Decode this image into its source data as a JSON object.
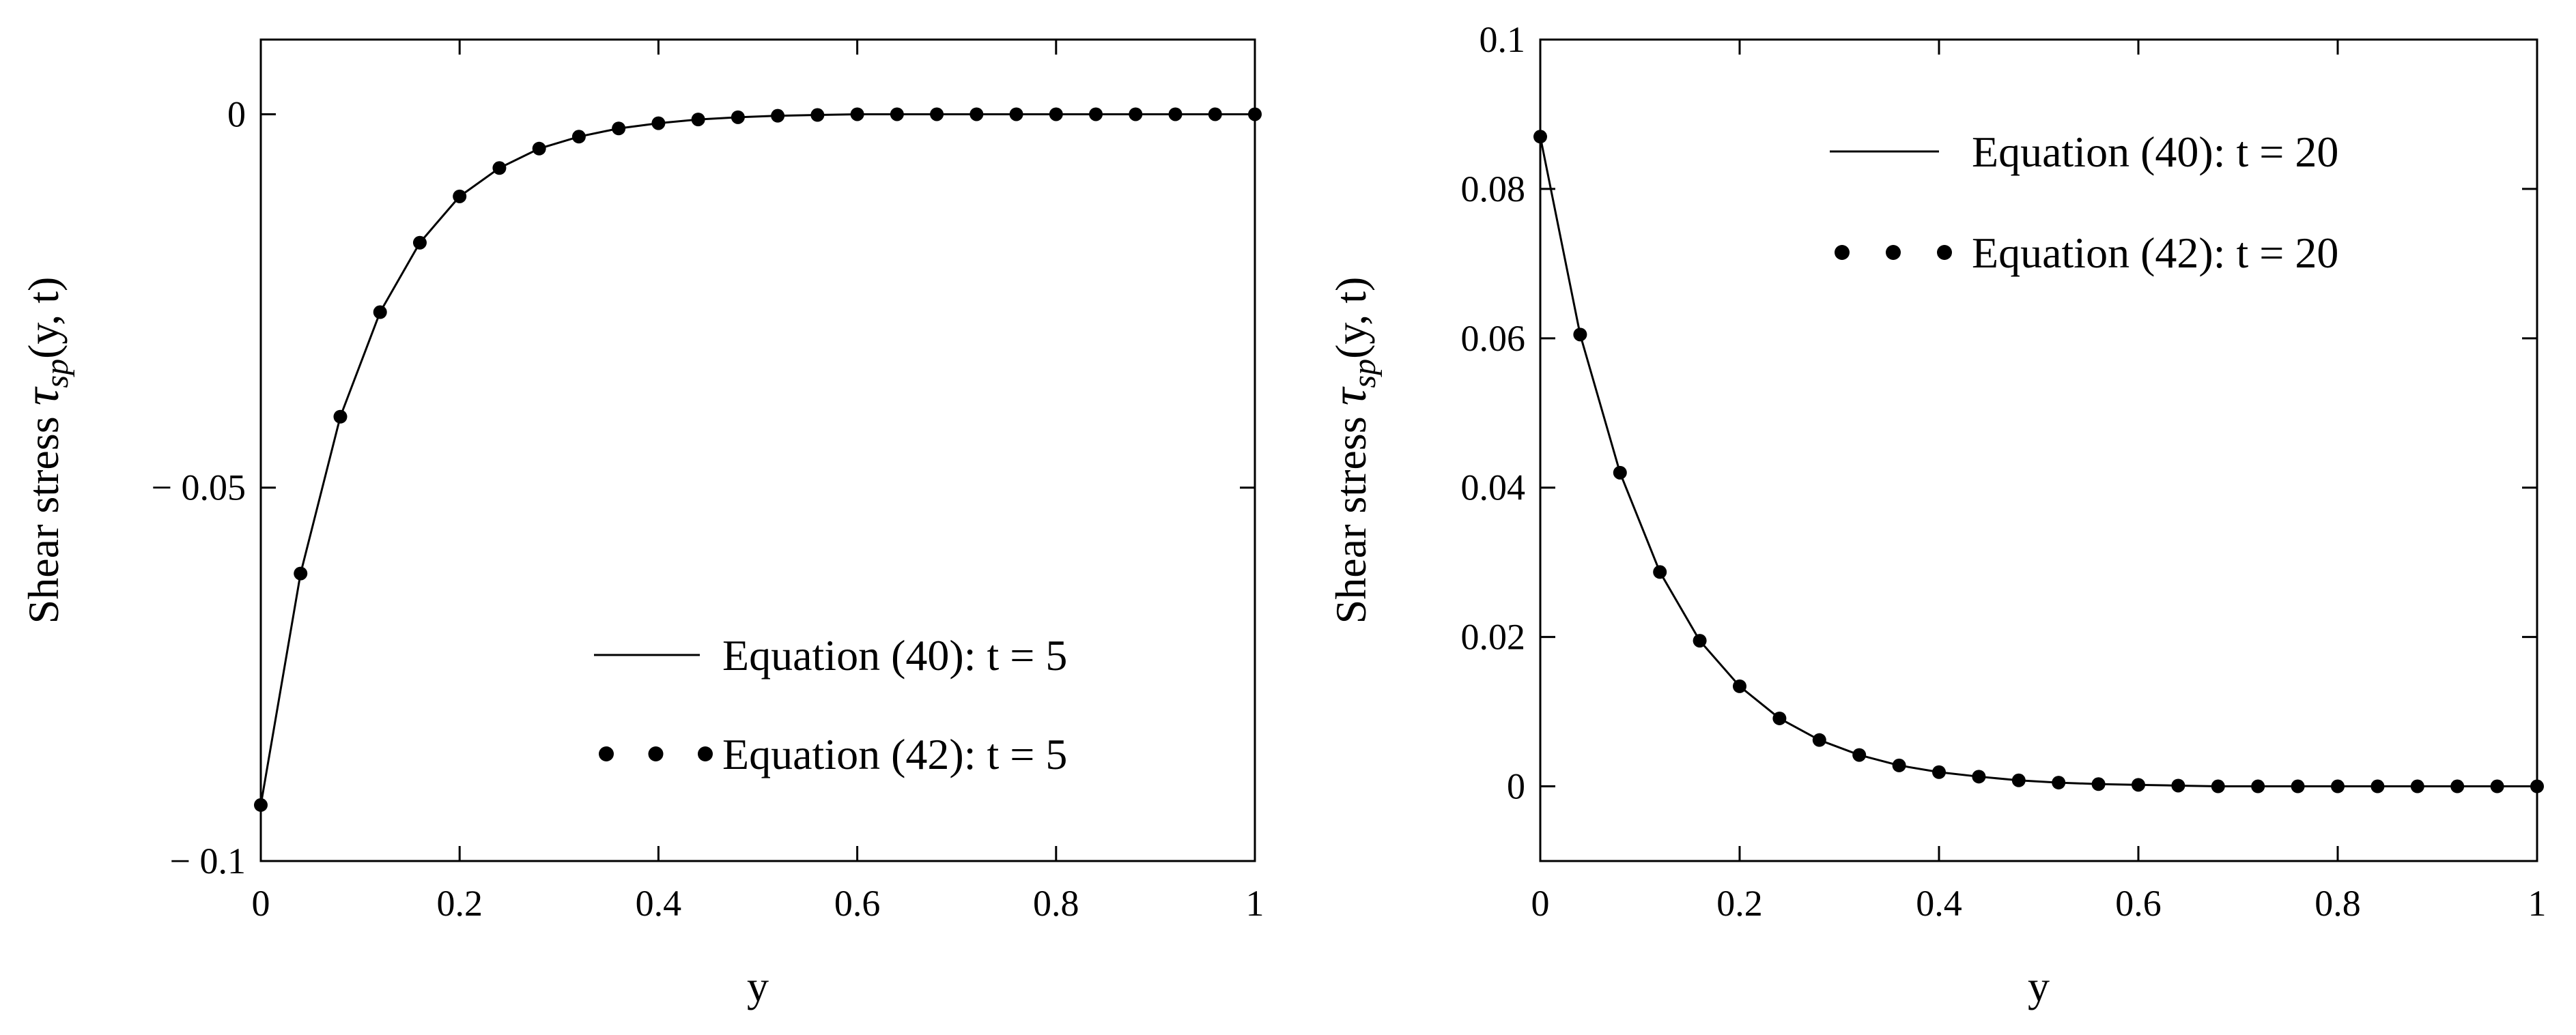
{
  "chart_data": [
    {
      "type": "line",
      "title": "",
      "xlabel": "y",
      "ylabel_prefix": "Shear stress ",
      "ylabel_tau": "τ",
      "ylabel_sub": "sp",
      "ylabel_suffix": "(y, t)",
      "xlim": [
        0,
        1
      ],
      "ylim": [
        -0.1,
        0.01
      ],
      "grid": false,
      "legend_position": "bottom-right",
      "xticks": [
        0,
        0.2,
        0.4,
        0.6,
        0.8,
        1
      ],
      "xtick_labels": [
        "0",
        "0.2",
        "0.4",
        "0.6",
        "0.8",
        "1"
      ],
      "yticks": [
        -0.1,
        -0.05,
        0
      ],
      "ytick_labels": [
        "− 0.1",
        "− 0.05",
        "0"
      ],
      "series": [
        {
          "name": "Equation (40): t = 5",
          "style": "solid-line",
          "x": [
            0,
            0.04,
            0.08,
            0.12,
            0.16,
            0.2,
            0.24,
            0.28,
            0.32,
            0.36,
            0.4,
            0.44,
            0.48,
            0.52,
            0.56,
            0.6,
            0.64,
            0.68,
            0.72,
            0.76,
            0.8,
            0.84,
            0.88,
            0.92,
            0.96,
            1
          ],
          "values": [
            -0.0925,
            -0.0615,
            -0.0405,
            -0.0265,
            -0.0172,
            -0.011,
            -0.0072,
            -0.0046,
            -0.003,
            -0.0019,
            -0.0012,
            -0.0007,
            -0.0004,
            -0.0002,
            -0.0001,
            0,
            0,
            0,
            0,
            0,
            0,
            0,
            0,
            0,
            0,
            0
          ]
        },
        {
          "name": "Equation (42): t = 5",
          "style": "dots",
          "x": [
            0,
            0.04,
            0.08,
            0.12,
            0.16,
            0.2,
            0.24,
            0.28,
            0.32,
            0.36,
            0.4,
            0.44,
            0.48,
            0.52,
            0.56,
            0.6,
            0.64,
            0.68,
            0.72,
            0.76,
            0.8,
            0.84,
            0.88,
            0.92,
            0.96,
            1
          ],
          "values": [
            -0.0925,
            -0.0615,
            -0.0405,
            -0.0265,
            -0.0172,
            -0.011,
            -0.0072,
            -0.0046,
            -0.003,
            -0.0019,
            -0.0012,
            -0.0007,
            -0.0004,
            -0.0002,
            -0.0001,
            0,
            0,
            0,
            0,
            0,
            0,
            0,
            0,
            0,
            0,
            0
          ]
        }
      ]
    },
    {
      "type": "line",
      "title": "",
      "xlabel": "y",
      "ylabel_prefix": "Shear stress ",
      "ylabel_tau": "τ",
      "ylabel_sub": "sp",
      "ylabel_suffix": "(y, t)",
      "xlim": [
        0,
        1
      ],
      "ylim": [
        -0.01,
        0.1
      ],
      "grid": false,
      "legend_position": "top-right",
      "xticks": [
        0,
        0.2,
        0.4,
        0.6,
        0.8,
        1
      ],
      "xtick_labels": [
        "0",
        "0.2",
        "0.4",
        "0.6",
        "0.8",
        "1"
      ],
      "yticks": [
        0,
        0.02,
        0.04,
        0.06,
        0.08,
        0.1
      ],
      "ytick_labels": [
        "0",
        "0.02",
        "0.04",
        "0.06",
        "0.08",
        "0.1"
      ],
      "series": [
        {
          "name": "Equation (40): t = 20",
          "style": "solid-line",
          "x": [
            0,
            0.04,
            0.08,
            0.12,
            0.16,
            0.2,
            0.24,
            0.28,
            0.32,
            0.36,
            0.4,
            0.44,
            0.48,
            0.52,
            0.56,
            0.6,
            0.64,
            0.68,
            0.72,
            0.76,
            0.8,
            0.84,
            0.88,
            0.92,
            0.96,
            1
          ],
          "values": [
            0.087,
            0.0605,
            0.042,
            0.0287,
            0.0195,
            0.0134,
            0.0091,
            0.0062,
            0.0042,
            0.0028,
            0.0019,
            0.0013,
            0.0008,
            0.0005,
            0.0003,
            0.0002,
            0.0001,
            0,
            0,
            0,
            0,
            0,
            0,
            0,
            0,
            0
          ]
        },
        {
          "name": "Equation (42): t = 20",
          "style": "dots",
          "x": [
            0,
            0.04,
            0.08,
            0.12,
            0.16,
            0.2,
            0.24,
            0.28,
            0.32,
            0.36,
            0.4,
            0.44,
            0.48,
            0.52,
            0.56,
            0.6,
            0.64,
            0.68,
            0.72,
            0.76,
            0.8,
            0.84,
            0.88,
            0.92,
            0.96,
            1
          ],
          "values": [
            0.087,
            0.0605,
            0.042,
            0.0287,
            0.0195,
            0.0134,
            0.0091,
            0.0062,
            0.0042,
            0.0028,
            0.0019,
            0.0013,
            0.0008,
            0.0005,
            0.0003,
            0.0002,
            0.0001,
            0,
            0,
            0,
            0,
            0,
            0,
            0,
            0,
            0
          ]
        }
      ]
    }
  ]
}
